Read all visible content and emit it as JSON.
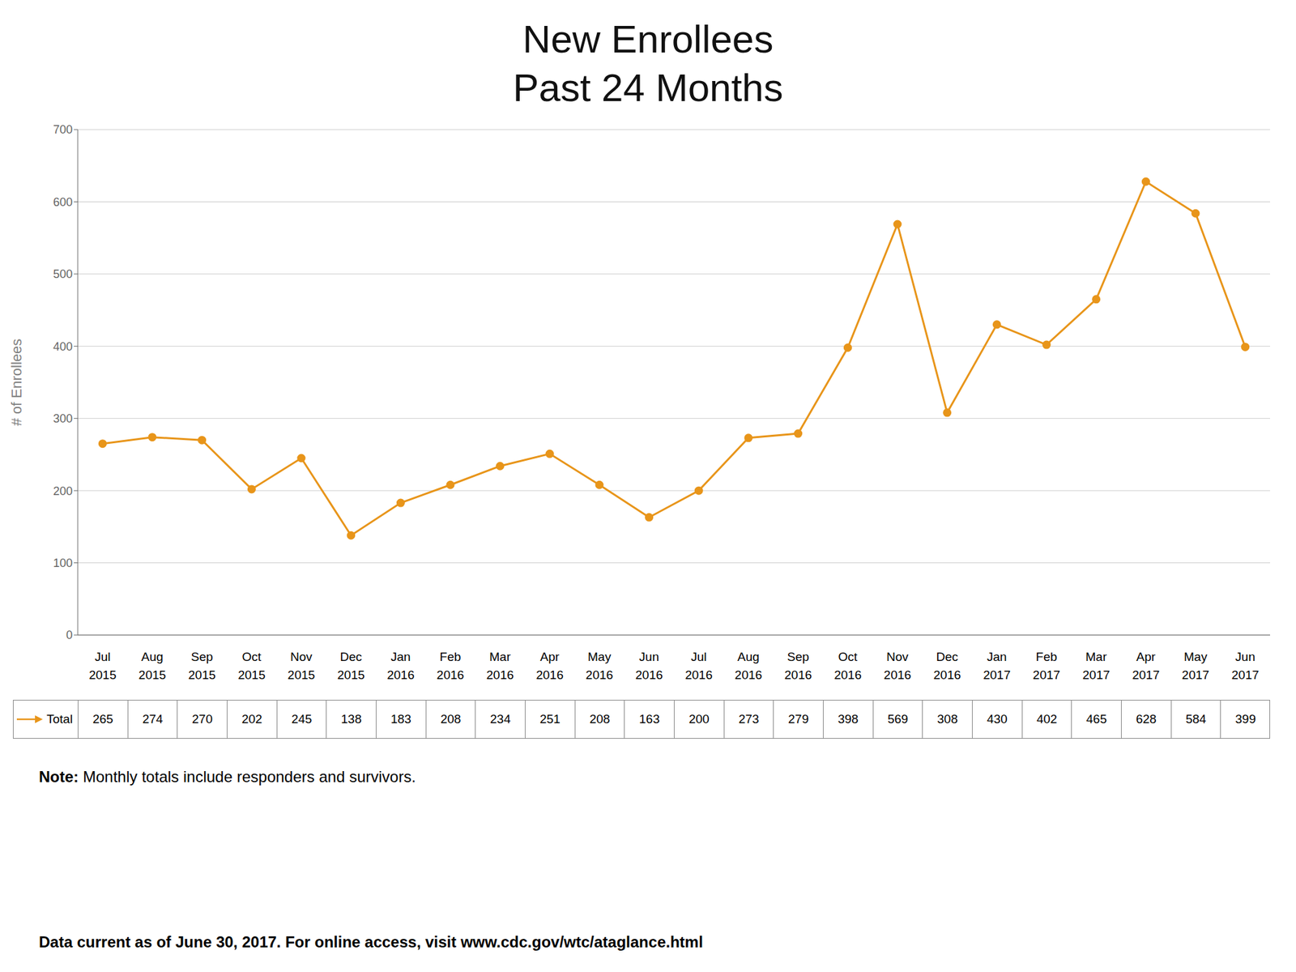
{
  "chart_data": {
    "type": "line",
    "title": "New Enrollees",
    "subtitle": "Past 24 Months",
    "y_label": "# of Enrollees",
    "categories": [
      "Jul\n2015",
      "Aug\n2015",
      "Sep\n2015",
      "Oct\n2015",
      "Nov\n2015",
      "Dec\n2015",
      "Jan\n2016",
      "Feb\n2016",
      "Mar\n2016",
      "Apr\n2016",
      "May\n2016",
      "Jun\n2016",
      "Jul\n2016",
      "Aug\n2016",
      "Sep\n2016",
      "Oct\n2016",
      "Nov\n2016",
      "Dec\n2016",
      "Jan\n2017",
      "Feb\n2017",
      "Mar\n2017",
      "Apr\n2017",
      "May\n2017",
      "Jun\n2017"
    ],
    "series": [
      {
        "name": "Total",
        "color": "#E8951A",
        "marker": "circle",
        "values": [
          265,
          274,
          270,
          202,
          245,
          138,
          183,
          208,
          234,
          251,
          208,
          163,
          200,
          273,
          279,
          398,
          569,
          308,
          430,
          402,
          465,
          628,
          584,
          399
        ]
      }
    ],
    "ylim": [
      0,
      700
    ],
    "yticks": [
      0,
      100,
      200,
      300,
      400,
      500,
      600,
      700
    ],
    "grid": true,
    "annotations": [
      "Note: Monthly totals include responders and survivors.",
      "Data current as of June 30, 2017. For online access, visit www.cdc.gov/wtc/ataglance.html"
    ]
  }
}
